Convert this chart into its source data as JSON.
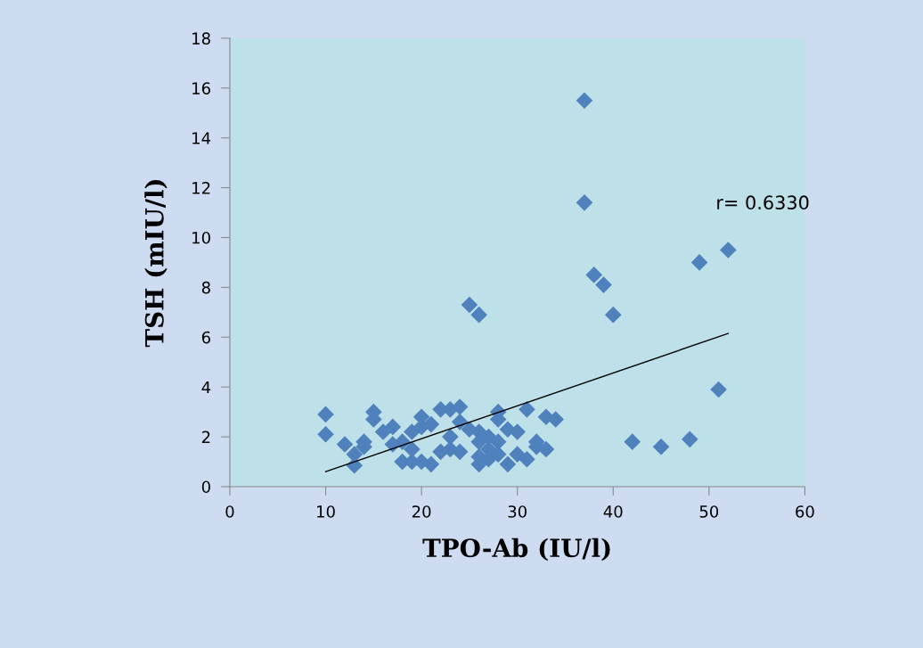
{
  "chart_data": {
    "type": "scatter",
    "xlabel": "TPO-Ab (IU/l)",
    "ylabel": "TSH (mIU/l)",
    "xlim": [
      0,
      60
    ],
    "xticks": [
      0,
      10,
      20,
      30,
      40,
      50,
      60
    ],
    "ylim": [
      0,
      18
    ],
    "yticks": [
      0,
      2,
      4,
      6,
      8,
      10,
      12,
      14,
      16,
      18
    ],
    "grid": false,
    "legend": false,
    "annotations": [
      "r= 0.6330"
    ],
    "series": [
      {
        "marker": "diamond",
        "color": "#4f81bd",
        "x": [
          10,
          10,
          12,
          13,
          13,
          14,
          14,
          15,
          15,
          16,
          17,
          17,
          18,
          18,
          19,
          19,
          19,
          20,
          20,
          20,
          21,
          21,
          22,
          22,
          23,
          23,
          23,
          24,
          24,
          24,
          25,
          25,
          26,
          26,
          26,
          26,
          26,
          27,
          27,
          27,
          28,
          28,
          28,
          28,
          29,
          29,
          30,
          30,
          31,
          31,
          32,
          32,
          33,
          33,
          34,
          37,
          37,
          38,
          39,
          40,
          42,
          45,
          48,
          49,
          51,
          52
        ],
        "values": [
          2.9,
          2.1,
          1.7,
          1.3,
          0.85,
          1.6,
          1.8,
          3.0,
          2.7,
          2.2,
          2.4,
          1.7,
          1.0,
          1.8,
          1.5,
          2.2,
          1.0,
          2.8,
          2.4,
          1.0,
          2.5,
          0.9,
          3.1,
          1.4,
          3.1,
          2.0,
          1.5,
          3.2,
          2.6,
          1.4,
          2.3,
          7.3,
          6.9,
          2.2,
          1.8,
          0.9,
          1.2,
          2.0,
          1.5,
          1.1,
          3.0,
          2.7,
          1.8,
          1.3,
          2.3,
          0.9,
          2.2,
          1.3,
          3.1,
          1.1,
          1.8,
          1.6,
          2.8,
          1.5,
          2.7,
          15.5,
          11.4,
          8.5,
          8.1,
          6.9,
          1.8,
          1.6,
          1.9,
          9.0,
          3.9,
          9.5
        ]
      },
      {
        "type": "line",
        "marker": "none",
        "color": "#000000",
        "x": [
          10,
          52
        ],
        "values": [
          0.6,
          6.15
        ]
      }
    ]
  }
}
